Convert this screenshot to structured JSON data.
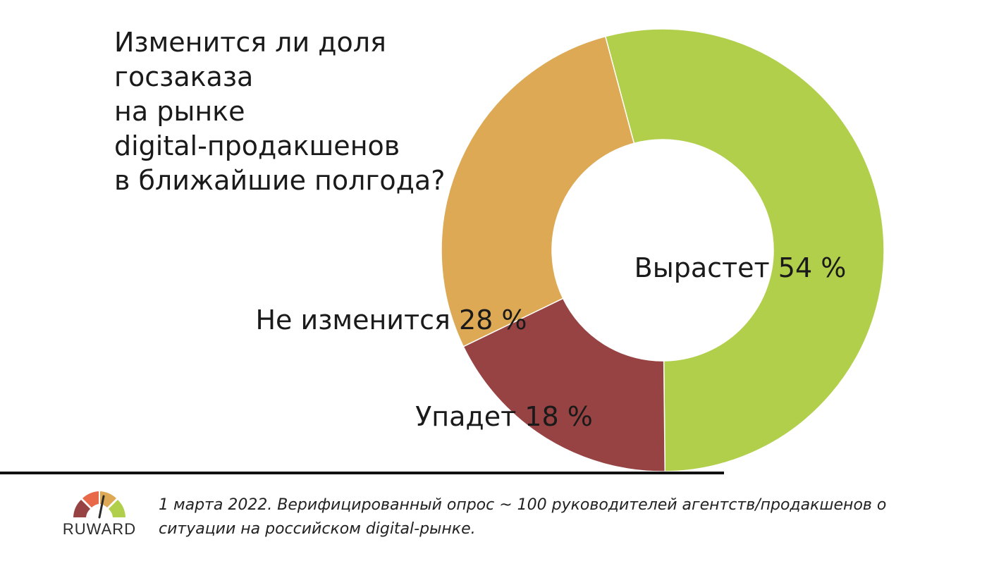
{
  "chart_data": {
    "type": "pie",
    "style": "donut",
    "title": "Изменится ли доля госзаказа\nна рынке\ndigital-продакшенов\nв ближайшие полгода?",
    "slices": [
      {
        "label": "Вырастет",
        "value": 54,
        "value_label": "54 %",
        "color": "#b1cf4b"
      },
      {
        "label": "Упадет",
        "value": 18,
        "value_label": "18 %",
        "color": "#974343"
      },
      {
        "label": "Не изменится",
        "value": 28,
        "value_label": "28 %",
        "color": "#dda954"
      }
    ],
    "legend": "none"
  },
  "footer": {
    "logo_text": "RUWARD",
    "logo_colors": [
      "#974343",
      "#e8684a",
      "#dda954",
      "#b1cf4b"
    ],
    "note": "1 марта 2022. Верифицированный опрос ~ 100 руководителей агентств/продакшенов о ситуации на российском digital-рынке."
  }
}
